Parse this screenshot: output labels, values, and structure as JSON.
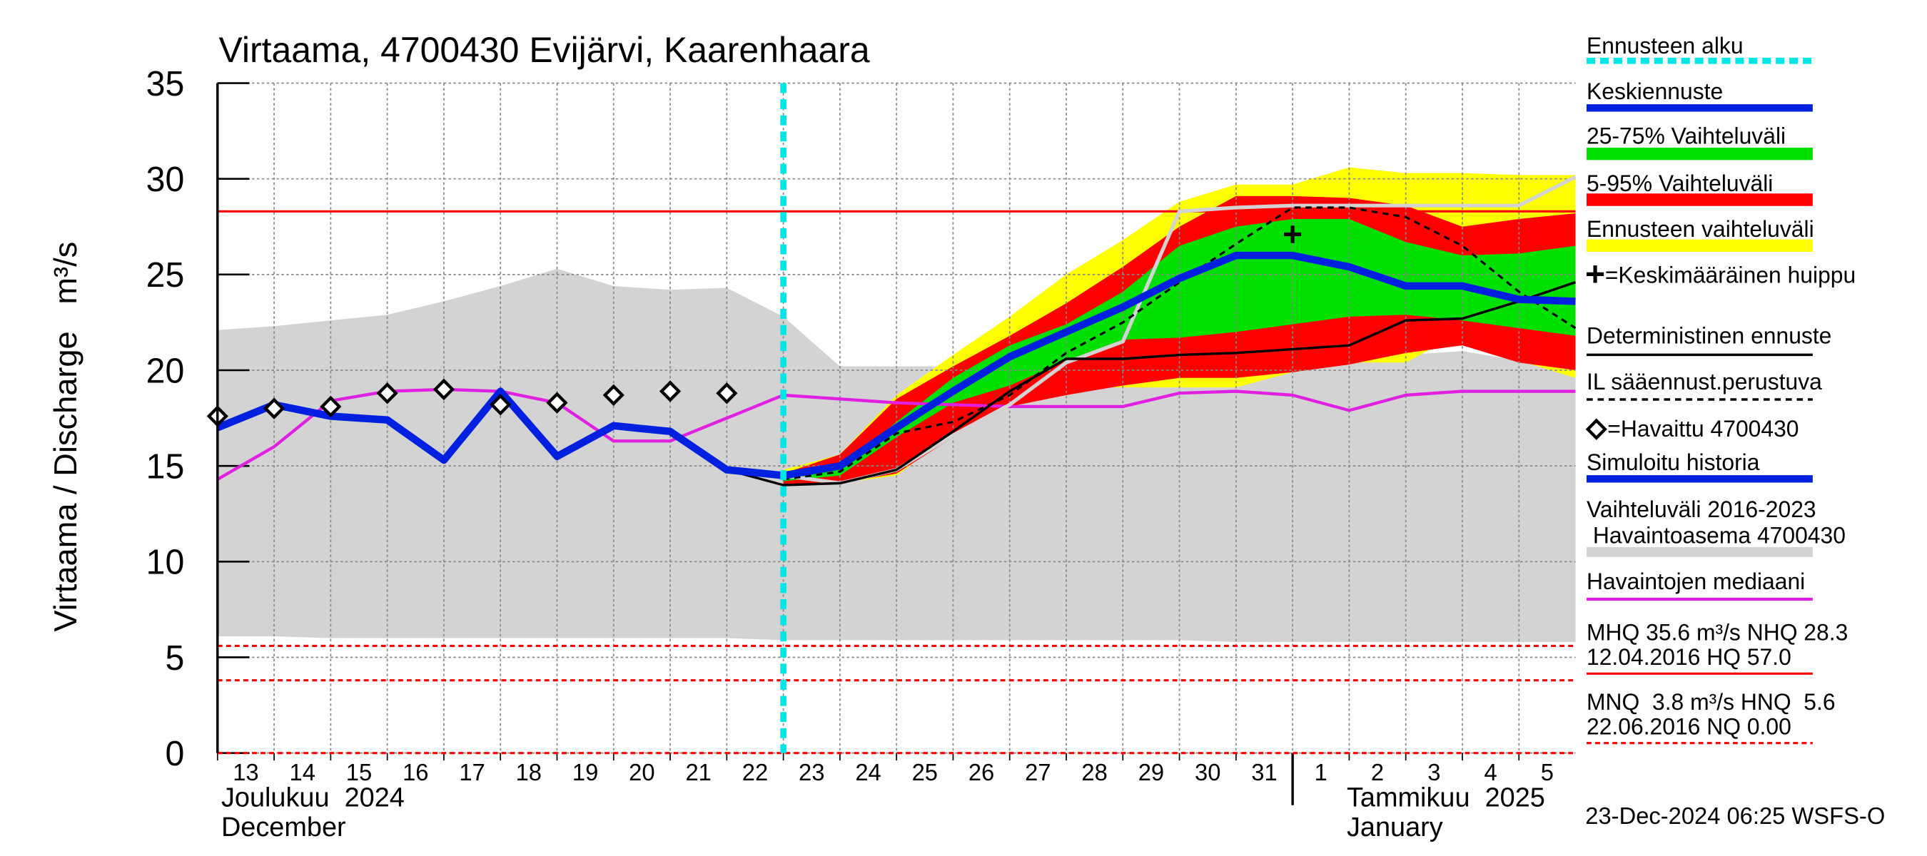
{
  "chart_data": {
    "type": "line",
    "title": "Virtaama, 4700430 Evijärvi, Kaarenhaara",
    "ylabel": "Virtaama / Discharge   m³/s",
    "x": [
      "2024-12-13",
      "2024-12-14",
      "2024-12-15",
      "2024-12-16",
      "2024-12-17",
      "2024-12-18",
      "2024-12-19",
      "2024-12-20",
      "2024-12-21",
      "2024-12-22",
      "2024-12-23",
      "2024-12-24",
      "2024-12-25",
      "2024-12-26",
      "2024-12-27",
      "2024-12-28",
      "2024-12-29",
      "2024-12-30",
      "2024-12-31",
      "2025-01-01",
      "2025-01-02",
      "2025-01-03",
      "2025-01-04",
      "2025-01-05",
      "2025-01-06"
    ],
    "xlim": [
      "2024-12-13",
      "2025-01-06"
    ],
    "xticks": [
      {
        "value": "2024-12-13",
        "label": "13"
      },
      {
        "value": "2024-12-14",
        "label": "14"
      },
      {
        "value": "2024-12-15",
        "label": "15"
      },
      {
        "value": "2024-12-16",
        "label": "16"
      },
      {
        "value": "2024-12-17",
        "label": "17"
      },
      {
        "value": "2024-12-18",
        "label": "18"
      },
      {
        "value": "2024-12-19",
        "label": "19"
      },
      {
        "value": "2024-12-20",
        "label": "20"
      },
      {
        "value": "2024-12-21",
        "label": "21"
      },
      {
        "value": "2024-12-22",
        "label": "22"
      },
      {
        "value": "2024-12-23",
        "label": "23"
      },
      {
        "value": "2024-12-24",
        "label": "24"
      },
      {
        "value": "2024-12-25",
        "label": "25"
      },
      {
        "value": "2024-12-26",
        "label": "26"
      },
      {
        "value": "2024-12-27",
        "label": "27"
      },
      {
        "value": "2024-12-28",
        "label": "28"
      },
      {
        "value": "2024-12-29",
        "label": "29"
      },
      {
        "value": "2024-12-30",
        "label": "30"
      },
      {
        "value": "2024-12-31",
        "label": "31"
      },
      {
        "value": "2025-01-01",
        "label": "1"
      },
      {
        "value": "2025-01-02",
        "label": "2"
      },
      {
        "value": "2025-01-03",
        "label": "3"
      },
      {
        "value": "2025-01-04",
        "label": "4"
      },
      {
        "value": "2025-01-05",
        "label": "5"
      }
    ],
    "month_labels": [
      [
        "Joulukuu  2024",
        "December"
      ],
      [
        "Tammikuu  2025",
        "January"
      ]
    ],
    "ylim": [
      0,
      35
    ],
    "yticks": [
      0,
      5,
      10,
      15,
      20,
      25,
      30,
      35
    ],
    "grid": true,
    "bands": [
      {
        "name": [
          "Vaihteluväli 2016-2023",
          " Havaintoasema 4700430"
        ],
        "color": "#d3d3d3",
        "upper": [
          22.1,
          22.3,
          22.6,
          22.9,
          23.6,
          24.4,
          25.3,
          24.4,
          24.2,
          24.3,
          22.8,
          20.2,
          20.2,
          20.2,
          20.2,
          20.3,
          20.4,
          20.5,
          20.6,
          20.7,
          20.8,
          20.8,
          21.0,
          20.5,
          19.9
        ],
        "lower": [
          6.1,
          6.1,
          6.0,
          6.0,
          6.0,
          6.0,
          6.0,
          6.0,
          6.0,
          6.0,
          5.9,
          5.9,
          5.9,
          5.9,
          5.9,
          5.9,
          5.9,
          5.9,
          5.8,
          5.8,
          5.8,
          5.8,
          5.8,
          5.8,
          5.8
        ]
      },
      {
        "name": "Ennusteen vaihteluväli",
        "color": "#ffff00",
        "upper": [
          null,
          null,
          null,
          null,
          null,
          null,
          null,
          null,
          null,
          null,
          14.8,
          15.6,
          18.7,
          20.8,
          22.8,
          25.0,
          26.8,
          28.8,
          29.7,
          29.7,
          30.6,
          30.3,
          30.3,
          30.2,
          30.2
        ],
        "lower": [
          null,
          null,
          null,
          null,
          null,
          null,
          null,
          null,
          null,
          null,
          14.0,
          14.1,
          14.5,
          16.7,
          18.3,
          19.1,
          19.1,
          19.1,
          19.1,
          19.9,
          20.4,
          20.4,
          22.0,
          20.5,
          19.6
        ]
      },
      {
        "name": "5-95% Vaihteluväli",
        "color": "#ff0000",
        "upper": [
          null,
          null,
          null,
          null,
          null,
          null,
          null,
          null,
          null,
          null,
          14.6,
          15.6,
          18.5,
          20.2,
          21.8,
          23.5,
          25.4,
          27.5,
          29.1,
          29.1,
          29.0,
          28.6,
          27.5,
          27.9,
          28.2
        ],
        "lower": [
          null,
          null,
          null,
          null,
          null,
          null,
          null,
          null,
          null,
          null,
          14.0,
          14.1,
          14.6,
          16.5,
          18.1,
          18.7,
          19.2,
          19.6,
          19.6,
          19.9,
          20.3,
          20.9,
          21.3,
          20.4,
          20.0
        ]
      },
      {
        "name": "25-75% Vaihteluväli",
        "color": "#00e000",
        "upper": [
          null,
          null,
          null,
          null,
          null,
          null,
          null,
          null,
          null,
          null,
          14.5,
          14.8,
          17.3,
          19.6,
          21.3,
          22.4,
          24.1,
          26.5,
          27.5,
          27.9,
          27.9,
          26.7,
          26.0,
          26.1,
          26.5
        ],
        "lower": [
          null,
          null,
          null,
          null,
          null,
          null,
          null,
          null,
          null,
          null,
          14.2,
          14.5,
          16.5,
          18.3,
          19.2,
          20.5,
          21.6,
          21.7,
          22.0,
          22.4,
          22.8,
          22.9,
          22.6,
          22.2,
          21.8
        ]
      }
    ],
    "series": [
      {
        "name": "Havaintojen mediaani",
        "color": "#e020e0",
        "width": 2.5,
        "values": [
          14.3,
          16.0,
          18.4,
          18.9,
          19.0,
          18.9,
          18.3,
          16.3,
          16.3,
          17.5,
          18.7,
          18.5,
          18.3,
          18.2,
          18.1,
          18.1,
          18.1,
          18.8,
          18.9,
          18.7,
          17.9,
          18.7,
          18.9,
          18.9,
          18.9
        ]
      },
      {
        "color": "#d3d3d3",
        "width": 3,
        "values": [
          null,
          null,
          null,
          null,
          null,
          null,
          null,
          null,
          null,
          null,
          14.5,
          14.1,
          14.8,
          16.6,
          18.2,
          20.4,
          21.5,
          28.3,
          28.5,
          28.6,
          28.6,
          28.6,
          28.6,
          28.6,
          30.1
        ]
      },
      {
        "name": "IL sääennust.perustuva",
        "color": "#000000",
        "width": 1.8,
        "dash": true,
        "values": [
          null,
          null,
          null,
          null,
          null,
          null,
          null,
          null,
          null,
          null,
          14.3,
          14.7,
          16.7,
          17.3,
          18.7,
          20.9,
          22.5,
          24.6,
          26.6,
          28.5,
          28.5,
          28.0,
          26.5,
          24.1,
          22.2
        ]
      },
      {
        "name": "Deterministinen ennuste",
        "color": "#000000",
        "width": 2,
        "values": [
          null,
          null,
          null,
          null,
          null,
          null,
          null,
          null,
          null,
          14.8,
          14.0,
          14.1,
          14.8,
          16.8,
          18.9,
          20.6,
          20.6,
          20.8,
          20.9,
          21.1,
          21.3,
          22.6,
          22.7,
          23.6,
          24.6
        ]
      },
      {
        "name": "Simuloitu historia",
        "color": "#0020e0",
        "width": 6,
        "values": [
          17.0,
          18.2,
          17.6,
          17.4,
          15.3,
          18.9,
          15.5,
          17.1,
          16.8,
          14.8,
          14.5,
          null,
          null,
          null,
          null,
          null,
          null,
          null,
          null,
          null,
          null,
          null,
          null,
          null,
          null
        ]
      },
      {
        "name": "Keskiennuste",
        "color": "#0020e0",
        "width": 6,
        "values": [
          null,
          null,
          null,
          null,
          null,
          null,
          null,
          null,
          null,
          null,
          14.5,
          15.0,
          17.0,
          18.9,
          20.7,
          22.0,
          23.3,
          24.8,
          26.0,
          26.0,
          25.4,
          24.4,
          24.4,
          23.7,
          23.6
        ]
      },
      {
        "name": "=Havaittu 4700430",
        "color": "#000000",
        "marker": "diamond",
        "values": [
          17.6,
          18.0,
          18.1,
          18.8,
          19.0,
          18.2,
          18.3,
          18.7,
          18.9,
          18.8,
          null,
          null,
          null,
          null,
          null,
          null,
          null,
          null,
          null,
          null,
          null,
          null,
          null,
          null,
          null
        ]
      }
    ],
    "forecast_start": {
      "name": "Ennusteen alku",
      "x": "2024-12-23",
      "color": "#00e5e5"
    },
    "peak": {
      "name": "=Keskimääräinen huippu",
      "x": "2025-01-01",
      "value": 27.1,
      "color": "#000000"
    },
    "reference_lines": [
      {
        "value": 28.3,
        "dash": false
      },
      {
        "value": 5.6,
        "dash": true
      },
      {
        "value": 3.8,
        "dash": true
      },
      {
        "value": 0,
        "dash": true
      }
    ],
    "reference_color": "#ff0000",
    "stats_notes": [
      {
        "lines": [
          "MHQ 35.6 m³/s NHQ 28.3",
          "12.04.2016 HQ 57.0"
        ],
        "dash": false
      },
      {
        "lines": [
          "MNQ  3.8 m³/s HNQ  5.6",
          "22.06.2016 NQ 0.00"
        ],
        "dash": true
      }
    ],
    "timestamp": "23-Dec-2024 06:25 WSFS-O"
  }
}
